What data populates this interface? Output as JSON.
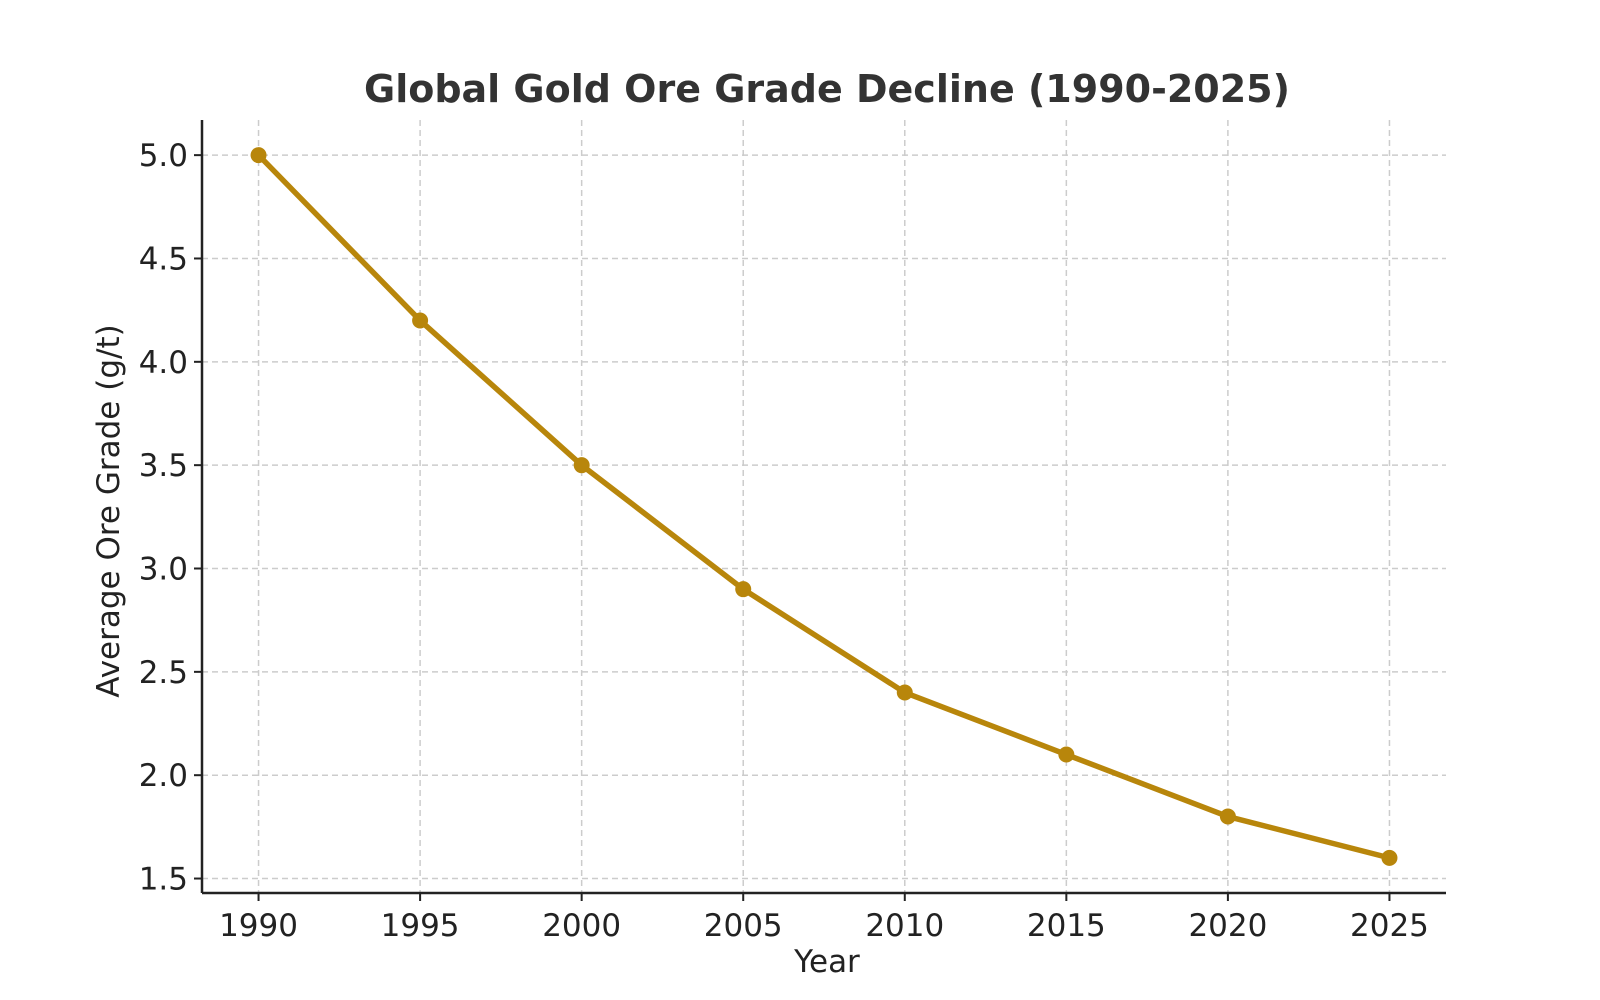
{
  "chart_data": {
    "type": "line",
    "title": "Global Gold Ore Grade Decline (1990-2025)",
    "xlabel": "Year",
    "ylabel": "Average Ore Grade (g/t)",
    "x": [
      1990,
      1995,
      2000,
      2005,
      2010,
      2015,
      2020,
      2025
    ],
    "series": [
      {
        "values": [
          5.0,
          4.2,
          3.5,
          2.9,
          2.4,
          2.1,
          1.8,
          1.6
        ],
        "color": "#b8860b"
      }
    ],
    "xticks": [
      "1990",
      "1995",
      "2000",
      "2005",
      "2010",
      "2015",
      "2020",
      "2025"
    ],
    "yticks": [
      "1.5",
      "2.0",
      "2.5",
      "3.0",
      "3.5",
      "4.0",
      "4.5",
      "5.0"
    ],
    "ytick_values": [
      1.5,
      2.0,
      2.5,
      3.0,
      3.5,
      4.0,
      4.5,
      5.0
    ],
    "xlim": [
      1988.25,
      2026.75
    ],
    "ylim": [
      1.43,
      5.17
    ],
    "grid": true,
    "legend": "none"
  }
}
